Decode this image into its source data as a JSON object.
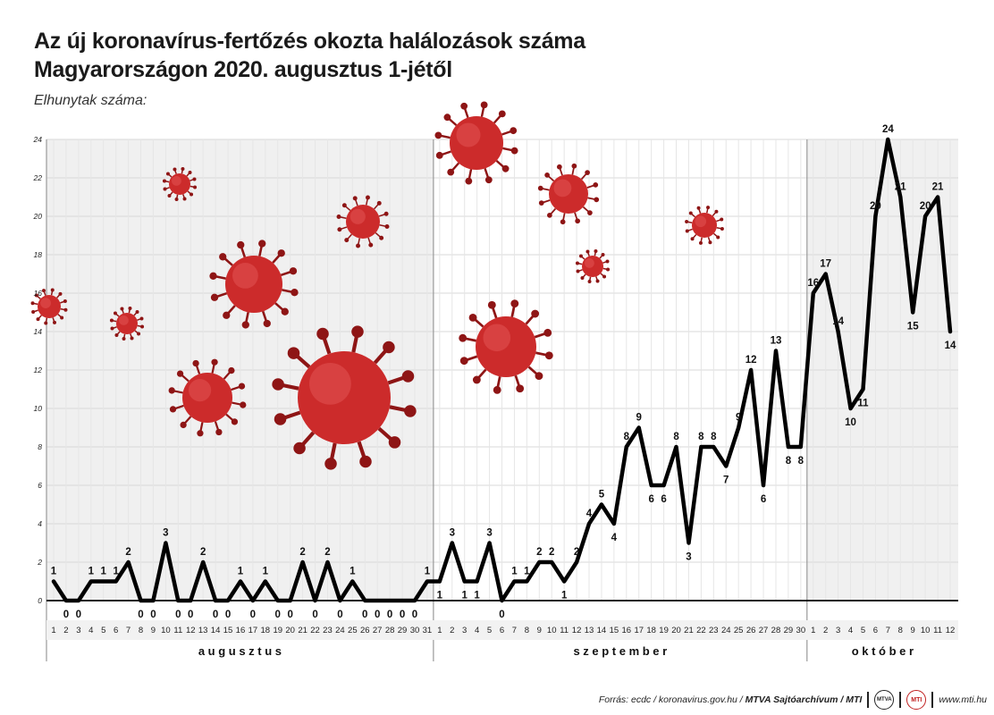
{
  "title": {
    "line1": "Az új koronavírus-fertőzés okozta halálozások száma",
    "line2": "Magyarországon 2020. augusztus 1-jétől"
  },
  "subtitle": "Elhunytak száma:",
  "footer": {
    "source": "Forrás: ecdc / koronavirus.gov.hu / ",
    "credit": "MTVA Sajtóarchívum / MTI",
    "url": "www.mti.hu",
    "logo1": "MTVA",
    "logo2": "MTI"
  },
  "colors": {
    "line": "#000000",
    "grid": "#d8d8d8",
    "shade": "#f0f0f0",
    "virus": "#cc2b2b",
    "virus_dark": "#8e1515"
  },
  "chart_data": {
    "type": "line",
    "ylabel": "Elhunytak száma:",
    "ylim": [
      0,
      24
    ],
    "yticks": [
      0,
      2,
      4,
      6,
      8,
      10,
      12,
      14,
      16,
      18,
      20,
      22,
      24
    ],
    "grid": true,
    "months": [
      {
        "name": "a u g u s z t u s",
        "days": 31
      },
      {
        "name": "s z e p t e m b e r",
        "days": 30
      },
      {
        "name": "o k t ó b e r",
        "days": 12
      }
    ],
    "series": [
      {
        "values": [
          1,
          0,
          0,
          1,
          1,
          1,
          2,
          0,
          0,
          3,
          0,
          0,
          2,
          0,
          0,
          1,
          0,
          1,
          0,
          0,
          2,
          0,
          2,
          0,
          1,
          0,
          0,
          0,
          0,
          0,
          1,
          1,
          3,
          1,
          1,
          3,
          0,
          1,
          1,
          2,
          2,
          1,
          2,
          4,
          5,
          4,
          8,
          9,
          6,
          6,
          8,
          3,
          8,
          8,
          7,
          9,
          12,
          6,
          13,
          8,
          8,
          16,
          17,
          14,
          10,
          11,
          20,
          24,
          21,
          15,
          20,
          21,
          14
        ],
        "label_positions": [
          "a",
          "b",
          "b",
          "a",
          "a",
          "a",
          "a",
          "b",
          "b",
          "a",
          "b",
          "b",
          "a",
          "b",
          "b",
          "a",
          "b",
          "a",
          "b",
          "b",
          "a",
          "b",
          "a",
          "b",
          "a",
          "b",
          "b",
          "b",
          "b",
          "b",
          "a",
          "b",
          "a",
          "b",
          "b",
          "a",
          "b",
          "a",
          "a",
          "a",
          "a",
          "b",
          "a",
          "a",
          "a",
          "b",
          "a",
          "a",
          "b",
          "b",
          "a",
          "b",
          "a",
          "a",
          "b",
          "a",
          "a",
          "b",
          "a",
          "b",
          "b",
          "a",
          "a",
          "a",
          "b",
          "b",
          "a",
          "a",
          "a",
          "b",
          "a",
          "a",
          "b"
        ]
      }
    ]
  }
}
